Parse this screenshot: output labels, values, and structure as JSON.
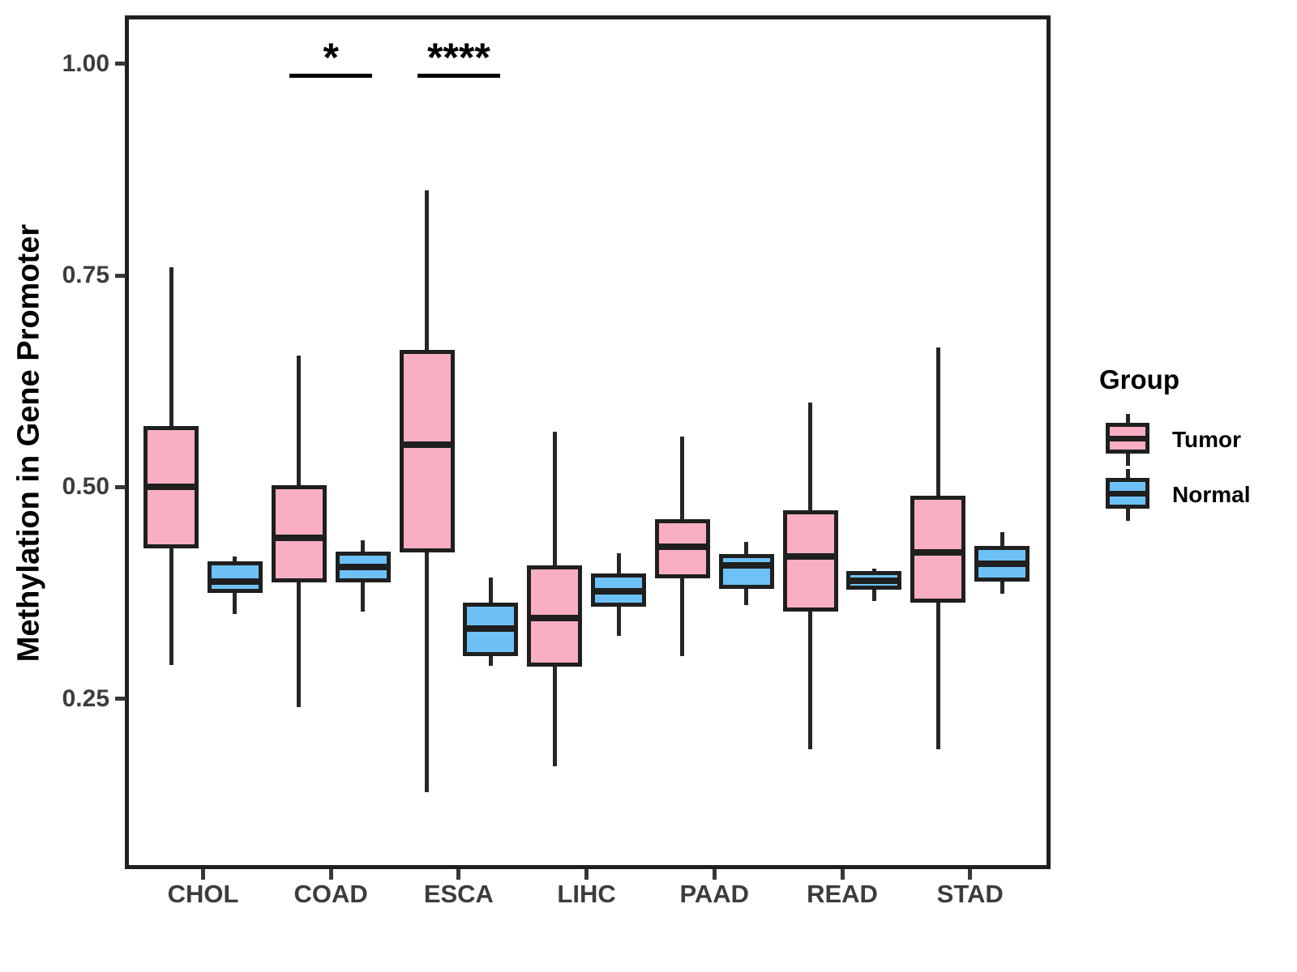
{
  "chart_data": {
    "type": "boxplot",
    "title": "",
    "xlabel": "",
    "ylabel": "Methylation in Gene Promoter",
    "categories": [
      "CHOL",
      "COAD",
      "ESCA",
      "LIHC",
      "PAAD",
      "READ",
      "STAD"
    ],
    "y_ticks": [
      {
        "value": 0.25,
        "label": "0.25"
      },
      {
        "value": 0.5,
        "label": "0.50"
      },
      {
        "value": 0.75,
        "label": "0.75"
      },
      {
        "value": 1.0,
        "label": "1.00"
      }
    ],
    "ylim": [
      0.05,
      1.05
    ],
    "grid": "off",
    "series": [
      {
        "name": "Tumor",
        "color": "#F9AFC1",
        "boxes": [
          {
            "category": "CHOL",
            "min": 0.29,
            "q1": 0.43,
            "median": 0.5,
            "q3": 0.57,
            "max": 0.76
          },
          {
            "category": "COAD",
            "min": 0.24,
            "q1": 0.39,
            "median": 0.44,
            "q3": 0.5,
            "max": 0.655
          },
          {
            "category": "ESCA",
            "min": 0.14,
            "q1": 0.425,
            "median": 0.55,
            "q3": 0.66,
            "max": 0.85
          },
          {
            "category": "LIHC",
            "min": 0.17,
            "q1": 0.29,
            "median": 0.345,
            "q3": 0.405,
            "max": 0.565
          },
          {
            "category": "PAAD",
            "min": 0.3,
            "q1": 0.395,
            "median": 0.43,
            "q3": 0.46,
            "max": 0.56
          },
          {
            "category": "READ",
            "min": 0.19,
            "q1": 0.355,
            "median": 0.418,
            "q3": 0.47,
            "max": 0.6
          },
          {
            "category": "STAD",
            "min": 0.19,
            "q1": 0.366,
            "median": 0.423,
            "q3": 0.487,
            "max": 0.665
          }
        ]
      },
      {
        "name": "Normal",
        "color": "#6EC1F6",
        "boxes": [
          {
            "category": "CHOL",
            "min": 0.35,
            "q1": 0.377,
            "median": 0.388,
            "q3": 0.41,
            "max": 0.418
          },
          {
            "category": "COAD",
            "min": 0.353,
            "q1": 0.39,
            "median": 0.406,
            "q3": 0.421,
            "max": 0.437
          },
          {
            "category": "ESCA",
            "min": 0.289,
            "q1": 0.303,
            "median": 0.333,
            "q3": 0.361,
            "max": 0.393
          },
          {
            "category": "LIHC",
            "min": 0.324,
            "q1": 0.361,
            "median": 0.377,
            "q3": 0.396,
            "max": 0.422
          },
          {
            "category": "PAAD",
            "min": 0.361,
            "q1": 0.382,
            "median": 0.408,
            "q3": 0.419,
            "max": 0.435
          },
          {
            "category": "READ",
            "min": 0.365,
            "q1": 0.381,
            "median": 0.389,
            "q3": 0.398,
            "max": 0.404
          },
          {
            "category": "STAD",
            "min": 0.374,
            "q1": 0.391,
            "median": 0.409,
            "q3": 0.428,
            "max": 0.447
          }
        ]
      }
    ],
    "significance": [
      {
        "category": "COAD",
        "label": "*"
      },
      {
        "category": "ESCA",
        "label": "****"
      }
    ],
    "legend": {
      "title": "Group",
      "entries": [
        {
          "label": "Tumor",
          "color": "#F9AFC1"
        },
        {
          "label": "Normal",
          "color": "#6EC1F6"
        }
      ],
      "position": "right"
    },
    "colors": {
      "tumor_fill": "#F9AFC1",
      "normal_fill": "#6EC1F6",
      "box_border": "#1F1F1F",
      "axis_text": "#3C3C3C",
      "annotation": "#000000"
    }
  }
}
